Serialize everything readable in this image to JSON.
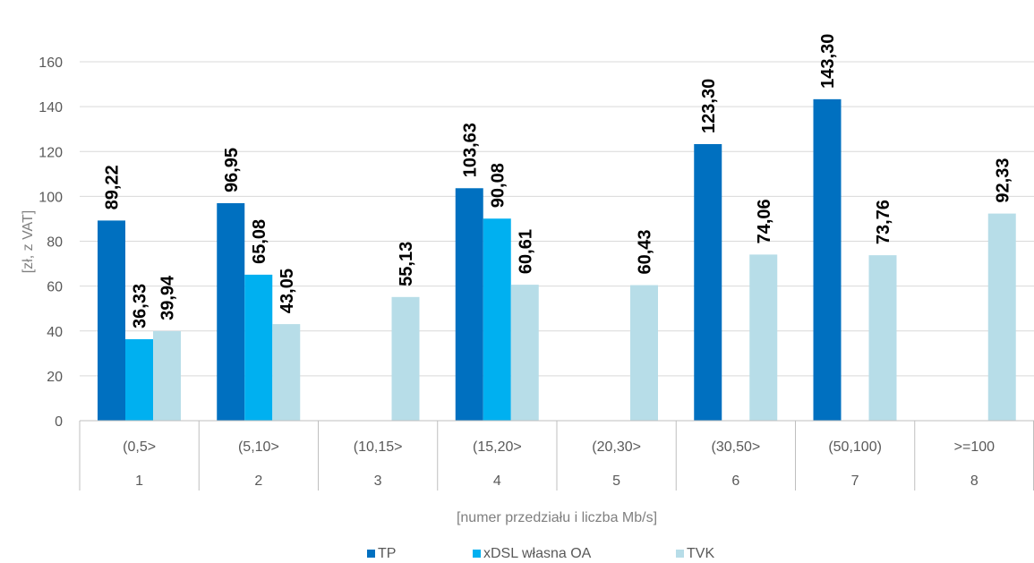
{
  "chart_data": {
    "type": "bar",
    "ylabel": "[zł, z VAT]",
    "xlabel": "[numer przedziału i liczba Mb/s]",
    "ylim": [
      0,
      160
    ],
    "yticks": [
      0,
      20,
      40,
      60,
      80,
      100,
      120,
      140,
      160
    ],
    "categories": [
      "(0,5>",
      "(5,10>",
      "(10,15>",
      "(15,20>",
      "(20,30>",
      "(30,50>",
      "(50,100)",
      ">=100"
    ],
    "category_numbers": [
      "1",
      "2",
      "3",
      "4",
      "5",
      "6",
      "7",
      "8"
    ],
    "series": [
      {
        "name": "TP",
        "color": "#0070c0",
        "values": [
          89.22,
          96.95,
          null,
          103.63,
          null,
          123.3,
          143.3,
          null
        ],
        "labels": [
          "89,22",
          "96,95",
          null,
          "103,63",
          null,
          "123,30",
          "143,30",
          null
        ]
      },
      {
        "name": "xDSL własna OA",
        "color": "#00b0f0",
        "values": [
          36.33,
          65.08,
          null,
          90.08,
          null,
          null,
          null,
          null
        ],
        "labels": [
          "36,33",
          "65,08",
          null,
          "90,08",
          null,
          null,
          null,
          null
        ]
      },
      {
        "name": "TVK",
        "color": "#b7dde8",
        "values": [
          39.94,
          43.05,
          55.13,
          60.61,
          60.43,
          74.06,
          73.76,
          92.33
        ],
        "labels": [
          "39,94",
          "43,05",
          "55,13",
          "60,61",
          "60,43",
          "74,06",
          "73,76",
          "92,33"
        ]
      }
    ],
    "legend_position": "bottom"
  }
}
